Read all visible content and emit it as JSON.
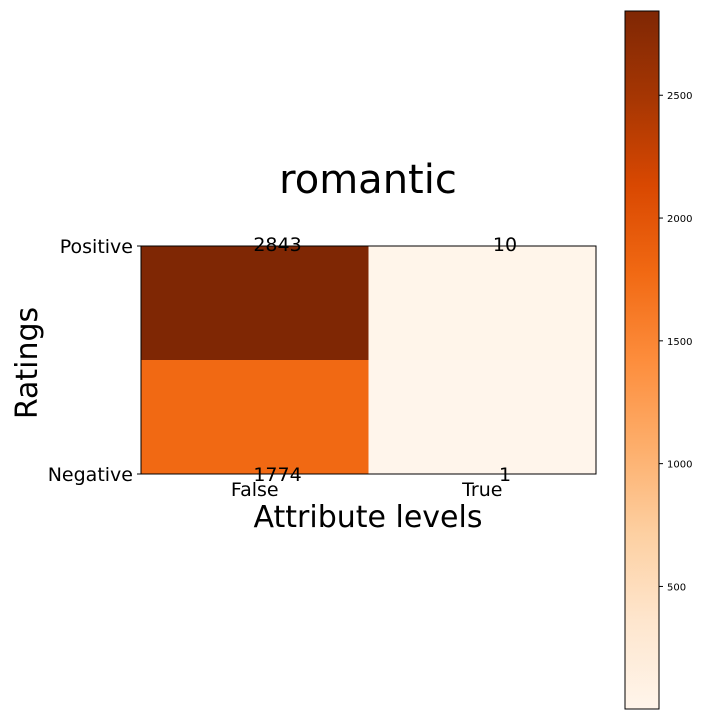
{
  "chart_data": {
    "type": "heatmap",
    "title": "romantic",
    "xlabel": "Attribute levels",
    "ylabel": "Ratings",
    "x_categories": [
      "False",
      "True"
    ],
    "y_categories": [
      "Positive",
      "Negative"
    ],
    "cells": [
      {
        "x": "False",
        "y": "Positive",
        "value": 2843
      },
      {
        "x": "True",
        "y": "Positive",
        "value": 10
      },
      {
        "x": "False",
        "y": "Negative",
        "value": 1774
      },
      {
        "x": "True",
        "y": "Negative",
        "value": 1
      }
    ],
    "colormap": "Oranges",
    "colorbar": {
      "min": 1,
      "max": 2843,
      "ticks": [
        500,
        1000,
        1500,
        2000,
        2500
      ]
    }
  }
}
